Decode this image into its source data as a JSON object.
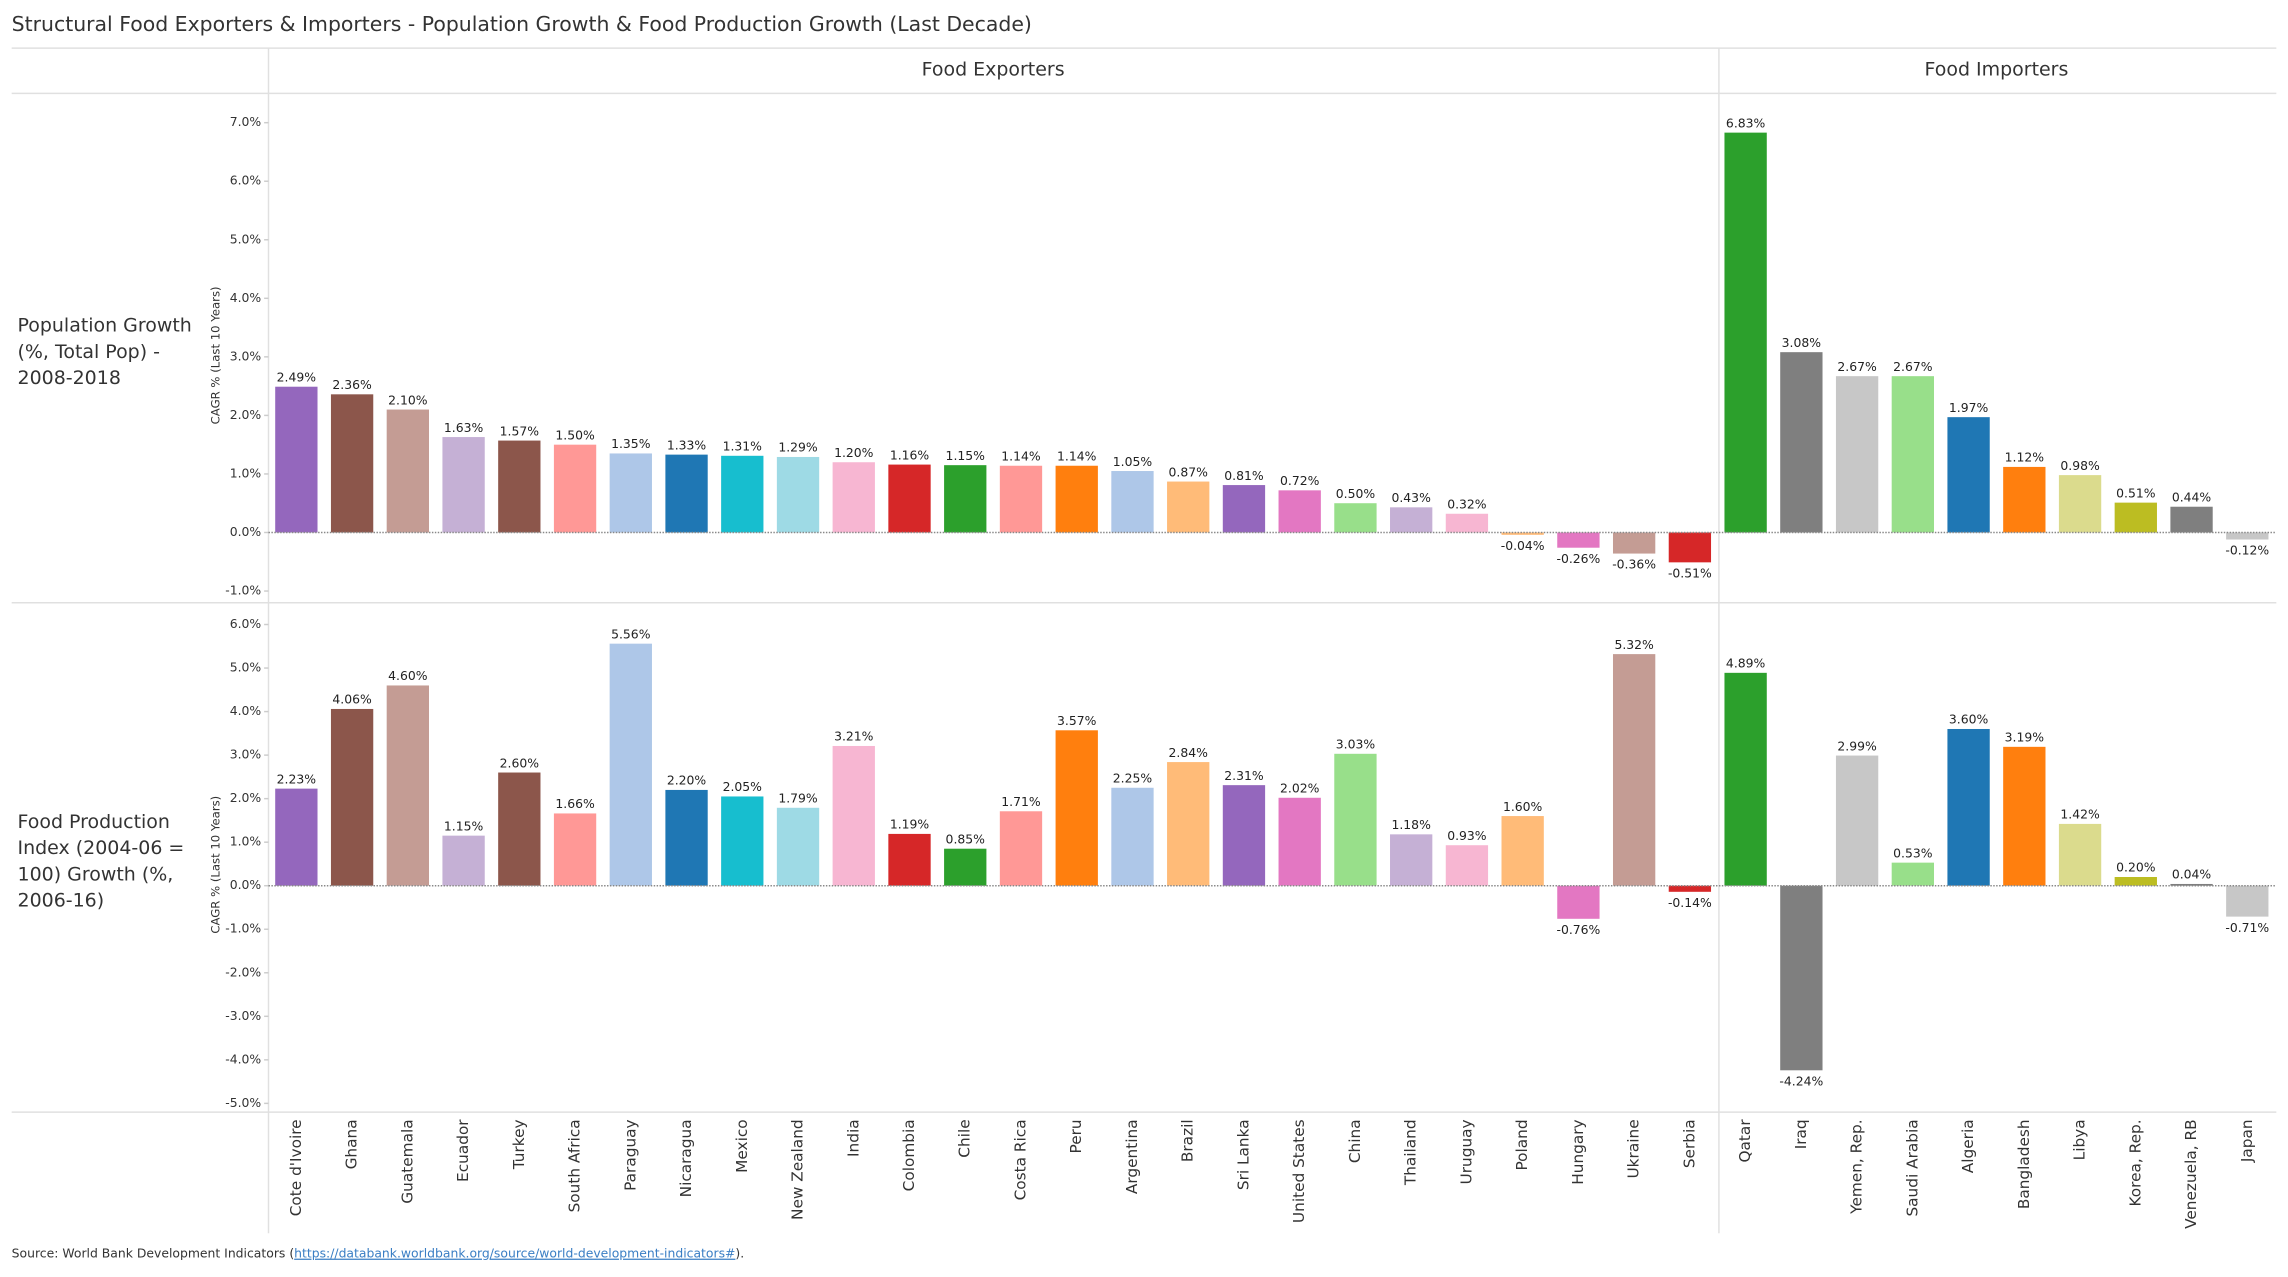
{
  "chart_data": {
    "type": "bar",
    "title": "Structural Food Exporters & Importers - Population Growth & Food Production Growth (Last Decade)",
    "y_label": "CAGR % (Last 10 Years)",
    "groups": [
      {
        "name": "Food Exporters",
        "categories": [
          "Cote d'Ivoire",
          "Ghana",
          "Guatemala",
          "Ecuador",
          "Turkey",
          "South Africa",
          "Paraguay",
          "Nicaragua",
          "Mexico",
          "New Zealand",
          "India",
          "Colombia",
          "Chile",
          "Costa Rica",
          "Peru",
          "Argentina",
          "Brazil",
          "Sri Lanka",
          "United States",
          "China",
          "Thailand",
          "Uruguay",
          "Poland",
          "Hungary",
          "Ukraine",
          "Serbia"
        ],
        "colors": [
          "#9467bd",
          "#8c564b",
          "#c49c94",
          "#c5b0d5",
          "#8c564b",
          "#ff9896",
          "#aec7e8",
          "#1f77b4",
          "#17becf",
          "#9edae5",
          "#f7b6d2",
          "#d62728",
          "#2ca02c",
          "#ff9896",
          "#ff7f0e",
          "#aec7e8",
          "#ffbb78",
          "#9467bd",
          "#e377c2",
          "#98df8a",
          "#c5b0d5",
          "#f7b6d2",
          "#ffbb78",
          "#e377c2",
          "#c49c94",
          "#d62728"
        ]
      },
      {
        "name": "Food Importers",
        "categories": [
          "Qatar",
          "Iraq",
          "Yemen, Rep.",
          "Saudi Arabia",
          "Algeria",
          "Bangladesh",
          "Libya",
          "Korea, Rep.",
          "Venezuela, RB",
          "Japan"
        ],
        "colors": [
          "#2ca02c",
          "#7f7f7f",
          "#c7c7c7",
          "#98df8a",
          "#1f77b4",
          "#ff7f0e",
          "#dbdb8d",
          "#bcbd22",
          "#7f7f7f",
          "#c7c7c7"
        ]
      }
    ],
    "panels": [
      {
        "label": [
          "Population Growth",
          "(%, Total Pop) -",
          "2008-2018"
        ],
        "ylim": [
          -1.2,
          7.5
        ],
        "yticks": [
          {
            "value": -1,
            "label": "-1.0%"
          },
          {
            "value": 0,
            "label": "0.0%"
          },
          {
            "value": 1,
            "label": "1.0%"
          },
          {
            "value": 2,
            "label": "2.0%"
          },
          {
            "value": 3,
            "label": "3.0%"
          },
          {
            "value": 4,
            "label": "4.0%"
          },
          {
            "value": 5,
            "label": "5.0%"
          },
          {
            "value": 6,
            "label": "6.0%"
          },
          {
            "value": 7,
            "label": "7.0%"
          }
        ],
        "groups": [
          {
            "values": [
              2.49,
              2.36,
              2.1,
              1.63,
              1.57,
              1.5,
              1.35,
              1.33,
              1.31,
              1.29,
              1.2,
              1.16,
              1.15,
              1.14,
              1.14,
              1.05,
              0.87,
              0.81,
              0.72,
              0.5,
              0.43,
              0.32,
              -0.04,
              -0.26,
              -0.36,
              -0.51
            ],
            "value_labels": [
              "2.49%",
              "2.36%",
              "2.10%",
              "1.63%",
              "1.57%",
              "1.50%",
              "1.35%",
              "1.33%",
              "1.31%",
              "1.29%",
              "1.20%",
              "1.16%",
              "1.15%",
              "1.14%",
              "1.14%",
              "1.05%",
              "0.87%",
              "0.81%",
              "0.72%",
              "0.50%",
              "0.43%",
              "0.32%",
              "-0.04%",
              "-0.26%",
              "-0.36%",
              "-0.51%"
            ]
          },
          {
            "values": [
              6.83,
              3.08,
              2.67,
              2.67,
              1.97,
              1.12,
              0.98,
              0.51,
              0.44,
              -0.12
            ],
            "value_labels": [
              "6.83%",
              "3.08%",
              "2.67%",
              "2.67%",
              "1.97%",
              "1.12%",
              "0.98%",
              "0.51%",
              "0.44%",
              "-0.12%"
            ]
          }
        ]
      },
      {
        "label": [
          "Food Production",
          "Index (2004-06 =",
          "100) Growth (%,",
          "2006-16)"
        ],
        "ylim": [
          -5.2,
          6.5
        ],
        "yticks": [
          {
            "value": -5,
            "label": "-5.0%"
          },
          {
            "value": -4,
            "label": "-4.0%"
          },
          {
            "value": -3,
            "label": "-3.0%"
          },
          {
            "value": -2,
            "label": "-2.0%"
          },
          {
            "value": -1,
            "label": "-1.0%"
          },
          {
            "value": 0,
            "label": "0.0%"
          },
          {
            "value": 1,
            "label": "1.0%"
          },
          {
            "value": 2,
            "label": "2.0%"
          },
          {
            "value": 3,
            "label": "3.0%"
          },
          {
            "value": 4,
            "label": "4.0%"
          },
          {
            "value": 5,
            "label": "5.0%"
          },
          {
            "value": 6,
            "label": "6.0%"
          }
        ],
        "groups": [
          {
            "values": [
              2.23,
              4.06,
              4.6,
              1.15,
              2.6,
              1.66,
              5.56,
              2.2,
              2.05,
              1.79,
              3.21,
              1.19,
              0.85,
              1.71,
              3.57,
              2.25,
              2.84,
              2.31,
              2.02,
              3.03,
              1.18,
              0.93,
              1.6,
              -0.76,
              5.32,
              -0.14
            ],
            "value_labels": [
              "2.23%",
              "4.06%",
              "4.60%",
              "1.15%",
              "2.60%",
              "1.66%",
              "5.56%",
              "2.20%",
              "2.05%",
              "1.79%",
              "3.21%",
              "1.19%",
              "0.85%",
              "1.71%",
              "3.57%",
              "2.25%",
              "2.84%",
              "2.31%",
              "2.02%",
              "3.03%",
              "1.18%",
              "0.93%",
              "1.60%",
              "-0.76%",
              "5.32%",
              "-0.14%"
            ]
          },
          {
            "values": [
              4.89,
              -4.24,
              2.99,
              0.53,
              3.6,
              3.19,
              1.42,
              0.2,
              0.04,
              -0.71
            ],
            "value_labels": [
              "4.89%",
              "-4.24%",
              "2.99%",
              "0.53%",
              "3.60%",
              "3.19%",
              "1.42%",
              "0.20%",
              "0.04%",
              "-0.71%"
            ]
          }
        ]
      }
    ],
    "source": {
      "prefix": "Source: World Bank Development Indicators (",
      "link": "https://databank.worldbank.org/source/world-development-indicators#",
      "suffix": ")."
    }
  }
}
